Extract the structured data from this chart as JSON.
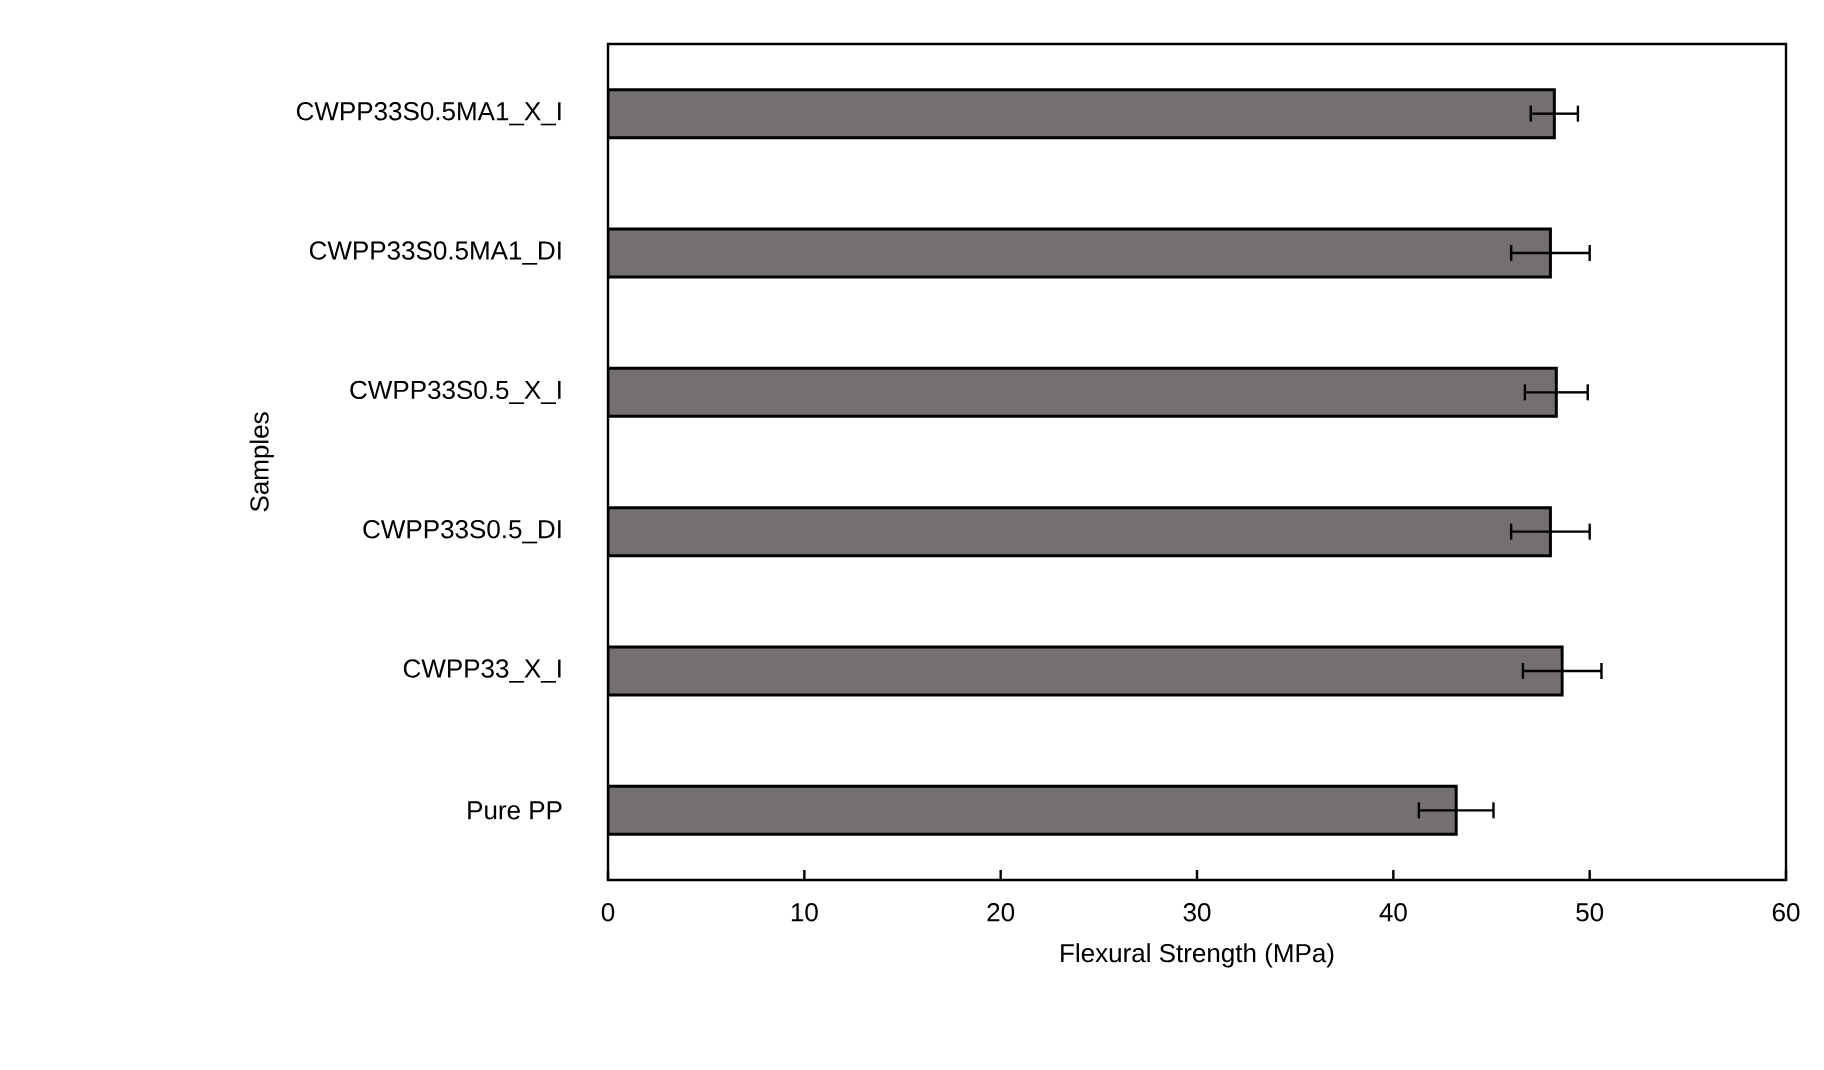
{
  "chart_data": {
    "type": "bar",
    "orientation": "horizontal",
    "xlabel": "Flexural Strength (MPa)",
    "ylabel": "Samples",
    "categories": [
      "CWPP33S0.5MA1_X_I",
      "CWPP33S0.5MA1_DI",
      "CWPP33S0.5_X_I",
      "CWPP33S0.5_DI",
      "CWPP33_X_I",
      "Pure PP"
    ],
    "values": [
      48.2,
      48.0,
      48.3,
      48.0,
      48.6,
      43.2
    ],
    "errors": [
      1.2,
      2.0,
      1.6,
      2.0,
      2.0,
      1.9
    ],
    "color": "#747070",
    "xlim": [
      0,
      60
    ],
    "xticks": [
      0,
      10,
      20,
      30,
      40,
      50,
      60
    ]
  }
}
